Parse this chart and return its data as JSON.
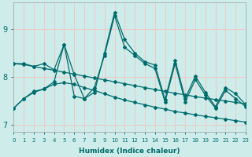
{
  "xlabel": "Humidex (Indice chaleur)",
  "xlim": [
    0,
    23
  ],
  "ylim": [
    6.85,
    9.55
  ],
  "yticks": [
    7,
    8,
    9
  ],
  "background_color": "#cdecea",
  "grid_color": "#f0c8c8",
  "line_color": "#006b6b",
  "fig_width": 3.2,
  "fig_height": 2.0,
  "dpi": 100,
  "series": [
    [
      7.35,
      7.55,
      7.7,
      7.75,
      7.85,
      7.88,
      7.85,
      7.78,
      7.72,
      7.65,
      7.58,
      7.52,
      7.47,
      7.42,
      7.37,
      7.33,
      7.28,
      7.25,
      7.21,
      7.18,
      7.15,
      7.12,
      7.09,
      7.06
    ],
    [
      8.28,
      8.26,
      8.22,
      8.18,
      8.14,
      8.1,
      8.06,
      8.02,
      7.98,
      7.94,
      7.9,
      7.86,
      7.82,
      7.78,
      7.74,
      7.7,
      7.66,
      7.63,
      7.59,
      7.56,
      7.53,
      7.5,
      7.47,
      7.44
    ],
    [
      7.35,
      7.55,
      7.68,
      7.75,
      7.9,
      8.68,
      8.05,
      7.55,
      7.68,
      8.5,
      9.35,
      8.78,
      8.5,
      8.32,
      8.25,
      7.53,
      8.35,
      7.55,
      8.02,
      7.68,
      7.38,
      7.78,
      7.65,
      7.42
    ],
    [
      8.28,
      8.28,
      8.22,
      8.28,
      8.15,
      8.68,
      7.6,
      7.55,
      7.78,
      8.45,
      9.28,
      8.62,
      8.45,
      8.28,
      8.18,
      7.48,
      8.28,
      7.48,
      7.95,
      7.62,
      7.35,
      7.72,
      7.55,
      7.38
    ]
  ]
}
